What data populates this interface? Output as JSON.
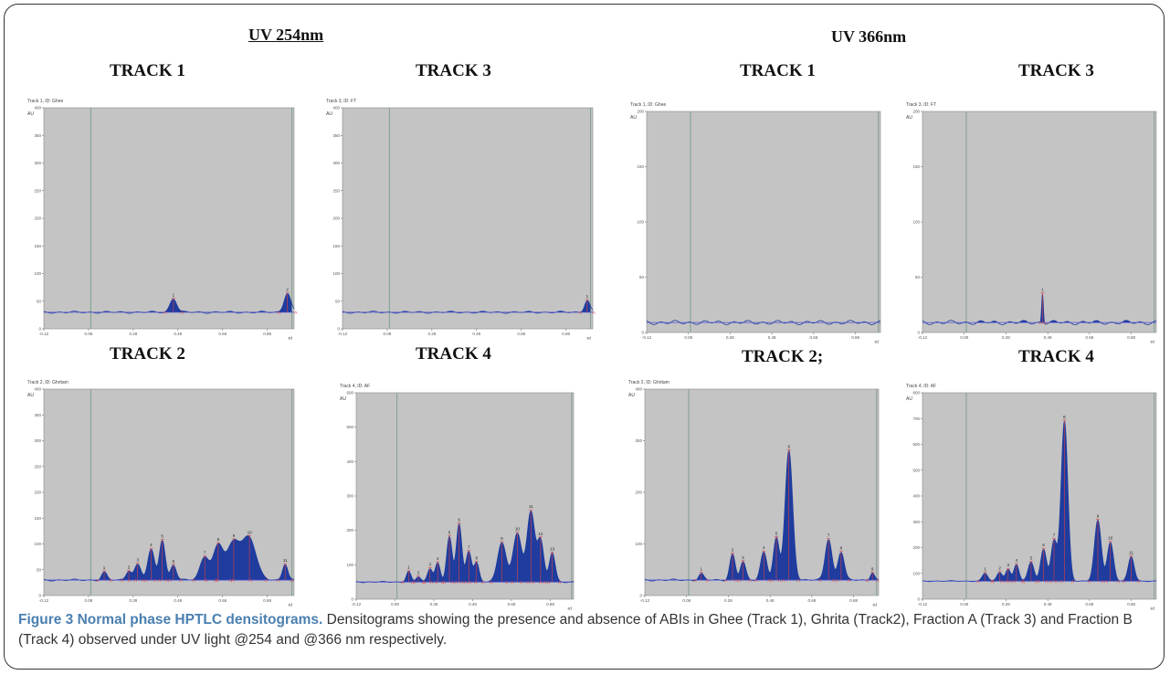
{
  "headers": {
    "uv254": "UV 254nm",
    "uv366": "UV 366nm"
  },
  "caption": {
    "label": "Figure 3 Normal phase HPTLC densitograms.",
    "text": "Densitograms showing the presence and absence of ABIs in Ghee (Track 1), Ghrita (Track2), Fraction A (Track 3) and Fraction B (Track 4) observed under UV light @254 and @366 nm respectively."
  },
  "colors": {
    "plot_bg": "#c4c4c4",
    "fill": "#1f3c9e",
    "baseline": "#4a4fd0",
    "marker": "#e04040",
    "frontline": "#7fa08c"
  },
  "chart_data": [
    {
      "type": "area",
      "title": "TRACK 1",
      "header_text": "Track 1, ID: Ghee",
      "ylabel": "AU",
      "xlabel": "Rf",
      "xlim": [
        -0.12,
        1.0
      ],
      "ylim": [
        0,
        400
      ],
      "xticks": [
        "-0.12",
        "0.08",
        "0.28",
        "0.48",
        "0.68",
        "0.88"
      ],
      "yticks": [
        "0",
        "50",
        "100",
        "150",
        "200",
        "250",
        "300",
        "350",
        "400"
      ],
      "baseline": 30,
      "frontlines": [
        0.09,
        0.99
      ],
      "peaks": [
        {
          "label": "1",
          "rf": 0.46,
          "h": 25,
          "w": 0.015
        },
        {
          "label": "2",
          "rf": 0.97,
          "h": 35,
          "w": 0.015
        }
      ]
    },
    {
      "type": "area",
      "title": "TRACK 3",
      "header_text": "Track 3, ID: FT",
      "ylabel": "AU",
      "xlabel": "Rf",
      "xlim": [
        -0.12,
        1.0
      ],
      "ylim": [
        0,
        400
      ],
      "xticks": [
        "-0.12",
        "0.08",
        "0.28",
        "0.48",
        "0.68",
        "0.88"
      ],
      "yticks": [
        "0",
        "50",
        "100",
        "150",
        "200",
        "250",
        "300",
        "350",
        "400"
      ],
      "baseline": 30,
      "frontlines": [
        0.09,
        0.99
      ],
      "peaks": [
        {
          "label": "1",
          "rf": 0.975,
          "h": 22,
          "w": 0.012
        }
      ]
    },
    {
      "type": "area",
      "title": "TRACK 1",
      "header_text": "Track 1, ID: Ghee",
      "ylabel": "AU",
      "xlabel": "Rf",
      "xlim": [
        -0.12,
        1.0
      ],
      "ylim": [
        0,
        200
      ],
      "xticks": [
        "-0.12",
        "0.08",
        "0.28",
        "0.48",
        "0.68",
        "0.88"
      ],
      "yticks": [
        "0",
        "50",
        "100",
        "150",
        "200"
      ],
      "baseline": 9,
      "frontlines": [
        0.09,
        0.99
      ],
      "peaks": []
    },
    {
      "type": "area",
      "title": "TRACK 3",
      "header_text": "Track 3, ID: FT",
      "ylabel": "AU",
      "xlabel": "Rf",
      "xlim": [
        -0.12,
        1.0
      ],
      "ylim": [
        0,
        200
      ],
      "xticks": [
        "-0.12",
        "0.08",
        "0.28",
        "0.48",
        "0.68",
        "0.88"
      ],
      "yticks": [
        "0",
        "50",
        "100",
        "150",
        "200"
      ],
      "baseline": 9,
      "frontlines": [
        0.09,
        0.99
      ],
      "peaks": [
        {
          "label": "1",
          "rf": 0.455,
          "h": 27,
          "w": 0.004
        }
      ]
    },
    {
      "type": "area",
      "title": "TRACK 2",
      "header_text": "Track 2, ID: Ghritam",
      "ylabel": "AU",
      "xlabel": "Rf",
      "xlim": [
        -0.12,
        1.0
      ],
      "ylim": [
        0,
        400
      ],
      "xticks": [
        "-0.12",
        "0.08",
        "0.28",
        "0.48",
        "0.68",
        "0.88"
      ],
      "yticks": [
        "0",
        "50",
        "100",
        "150",
        "200",
        "250",
        "300",
        "350",
        "400"
      ],
      "baseline": 30,
      "frontlines": [
        0.09,
        0.99
      ],
      "peaks": [
        {
          "label": "1",
          "rf": 0.15,
          "h": 15,
          "w": 0.012
        },
        {
          "label": "2",
          "rf": 0.26,
          "h": 18,
          "w": 0.012
        },
        {
          "label": "3",
          "rf": 0.3,
          "h": 30,
          "w": 0.015
        },
        {
          "label": "4",
          "rf": 0.36,
          "h": 58,
          "w": 0.015
        },
        {
          "label": "5",
          "rf": 0.41,
          "h": 78,
          "w": 0.013
        },
        {
          "label": "6",
          "rf": 0.46,
          "h": 30,
          "w": 0.013
        },
        {
          "label": "7",
          "rf": 0.6,
          "h": 45,
          "w": 0.02
        },
        {
          "label": "8",
          "rf": 0.66,
          "h": 65,
          "w": 0.022
        },
        {
          "label": "9",
          "rf": 0.73,
          "h": 72,
          "w": 0.03
        },
        {
          "label": "10",
          "rf": 0.8,
          "h": 80,
          "w": 0.03
        },
        {
          "label": "11",
          "rf": 0.96,
          "h": 32,
          "w": 0.012
        }
      ]
    },
    {
      "type": "area",
      "title": "TRACK 4",
      "header_text": "Track 4, ID: AF",
      "ylabel": "AU",
      "xlabel": "Rf",
      "xlim": [
        -0.12,
        1.0
      ],
      "ylim": [
        0,
        600
      ],
      "xticks": [
        "-0.12",
        "0.08",
        "0.28",
        "0.48",
        "0.68",
        "0.88"
      ],
      "yticks": [
        "0",
        "100",
        "200",
        "300",
        "400",
        "500",
        "600"
      ],
      "baseline": 50,
      "frontlines": [
        0.09,
        0.99
      ],
      "peaks": [
        {
          "label": "1",
          "rf": 0.15,
          "h": 30,
          "w": 0.012
        },
        {
          "label": "2",
          "rf": 0.2,
          "h": 15,
          "w": 0.012
        },
        {
          "label": "3",
          "rf": 0.26,
          "h": 40,
          "w": 0.013
        },
        {
          "label": "4",
          "rf": 0.3,
          "h": 55,
          "w": 0.013
        },
        {
          "label": "5",
          "rf": 0.36,
          "h": 130,
          "w": 0.014
        },
        {
          "label": "6",
          "rf": 0.41,
          "h": 170,
          "w": 0.014
        },
        {
          "label": "7",
          "rf": 0.46,
          "h": 90,
          "w": 0.014
        },
        {
          "label": "8",
          "rf": 0.5,
          "h": 55,
          "w": 0.013
        },
        {
          "label": "9",
          "rf": 0.63,
          "h": 115,
          "w": 0.022
        },
        {
          "label": "10",
          "rf": 0.71,
          "h": 140,
          "w": 0.022
        },
        {
          "label": "11",
          "rf": 0.78,
          "h": 205,
          "w": 0.02
        },
        {
          "label": "12",
          "rf": 0.83,
          "h": 120,
          "w": 0.016
        },
        {
          "label": "13",
          "rf": 0.89,
          "h": 85,
          "w": 0.015
        }
      ]
    },
    {
      "type": "area",
      "title": "TRACK 2;",
      "header_text": "Track 2, ID: Ghritam",
      "ylabel": "AU",
      "xlabel": "Rf",
      "xlim": [
        -0.12,
        1.0
      ],
      "ylim": [
        0,
        400
      ],
      "xticks": [
        "-0.12",
        "0.08",
        "0.28",
        "0.48",
        "0.68",
        "0.88"
      ],
      "yticks": [
        "0",
        "100",
        "200",
        "300",
        "400"
      ],
      "baseline": 30,
      "frontlines": [
        0.09,
        0.99
      ],
      "peaks": [
        {
          "label": "1",
          "rf": 0.15,
          "h": 12,
          "w": 0.012
        },
        {
          "label": "2",
          "rf": 0.3,
          "h": 50,
          "w": 0.013
        },
        {
          "label": "3",
          "rf": 0.35,
          "h": 35,
          "w": 0.013
        },
        {
          "label": "4",
          "rf": 0.45,
          "h": 55,
          "w": 0.015
        },
        {
          "label": "5",
          "rf": 0.51,
          "h": 80,
          "w": 0.014
        },
        {
          "label": "6",
          "rf": 0.57,
          "h": 250,
          "w": 0.018
        },
        {
          "label": "7",
          "rf": 0.76,
          "h": 80,
          "w": 0.016
        },
        {
          "label": "8",
          "rf": 0.82,
          "h": 55,
          "w": 0.015
        },
        {
          "label": "9",
          "rf": 0.97,
          "h": 15,
          "w": 0.01
        }
      ]
    },
    {
      "type": "area",
      "title": "TRACK 4",
      "header_text": "Track 4, ID: AF",
      "ylabel": "AU",
      "xlabel": "Rf",
      "xlim": [
        -0.12,
        1.0
      ],
      "ylim": [
        0,
        800
      ],
      "xticks": [
        "-0.12",
        "0.08",
        "0.28",
        "0.48",
        "0.68",
        "0.88"
      ],
      "yticks": [
        "0",
        "100",
        "200",
        "300",
        "400",
        "500",
        "600",
        "700",
        "800"
      ],
      "baseline": 70,
      "frontlines": [
        0.09,
        0.99
      ],
      "peaks": [
        {
          "label": "1",
          "rf": 0.18,
          "h": 30,
          "w": 0.013
        },
        {
          "label": "2",
          "rf": 0.25,
          "h": 35,
          "w": 0.013
        },
        {
          "label": "3",
          "rf": 0.29,
          "h": 45,
          "w": 0.012
        },
        {
          "label": "4",
          "rf": 0.33,
          "h": 65,
          "w": 0.012
        },
        {
          "label": "5",
          "rf": 0.4,
          "h": 75,
          "w": 0.014
        },
        {
          "label": "6",
          "rf": 0.46,
          "h": 125,
          "w": 0.014
        },
        {
          "label": "7",
          "rf": 0.51,
          "h": 155,
          "w": 0.014
        },
        {
          "label": "8",
          "rf": 0.56,
          "h": 620,
          "w": 0.016
        },
        {
          "label": "9",
          "rf": 0.72,
          "h": 235,
          "w": 0.016
        },
        {
          "label": "10",
          "rf": 0.78,
          "h": 150,
          "w": 0.015
        },
        {
          "label": "11",
          "rf": 0.88,
          "h": 95,
          "w": 0.014
        }
      ]
    }
  ]
}
